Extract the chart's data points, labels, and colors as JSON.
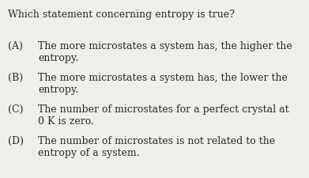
{
  "background_color": "#f0eeea",
  "text_color": "#2a2a2a",
  "question": "Which statement concerning entropy is true?",
  "options": [
    {
      "label": "(A)",
      "line1": "The more microstates a system has, the higher the",
      "line2": "entropy."
    },
    {
      "label": "(B)",
      "line1": "The more microstates a system has, the lower the",
      "line2": "entropy."
    },
    {
      "label": "(C)",
      "line1": "The number of microstates for a perfect crystal at",
      "line2": "0 K is zero."
    },
    {
      "label": "(D)",
      "line1": "The number of microstates is not related to the",
      "line2": "entropy of a system."
    }
  ],
  "question_fontsize": 9.0,
  "option_fontsize": 9.0,
  "figsize": [
    3.91,
    2.25
  ],
  "dpi": 100
}
